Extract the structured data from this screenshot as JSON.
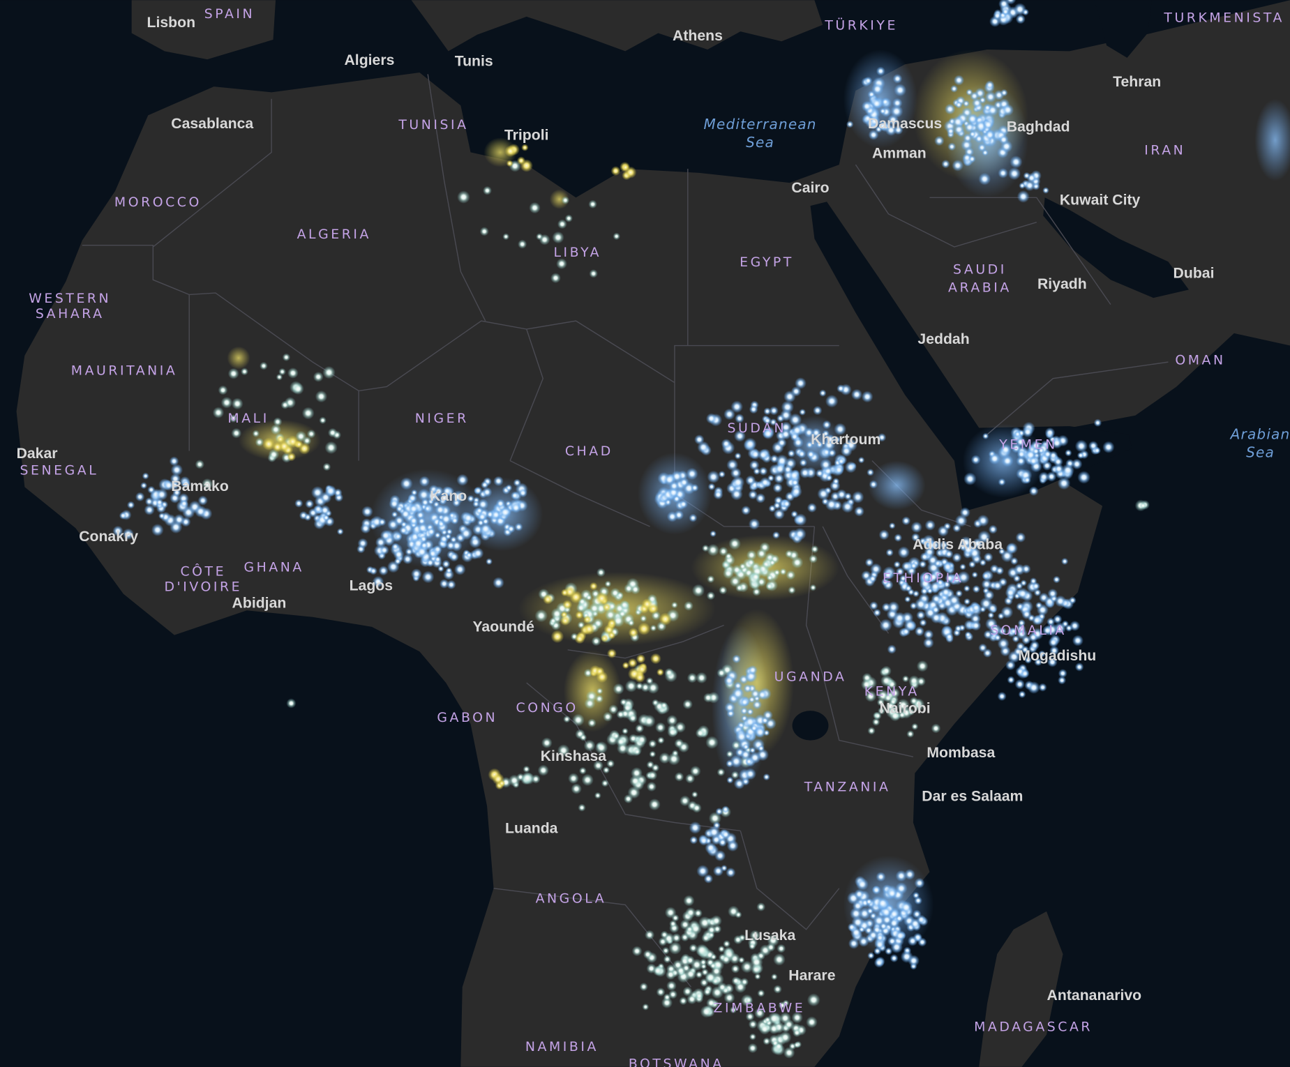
{
  "map": {
    "countries": [
      "SPAIN",
      "TÜRKIYE",
      "TURKMENISTA",
      "TUNISIA",
      "MOROCCO",
      "ALGERIA",
      "LIBYA",
      "EGYPT",
      "IRAN",
      "SAUDI",
      "ARABIA",
      "WESTERN",
      "SAHARA",
      "MAURITANIA",
      "MALI",
      "NIGER",
      "CHAD",
      "SUDAN",
      "OMAN",
      "SENEGAL",
      "GHANA",
      "CÔTE",
      "D'IVOIRE",
      "ETHIOPIA",
      "SOMALIA",
      "UGANDA",
      "KENYA",
      "GABON",
      "CONGO",
      "TANZANIA",
      "ANGOLA",
      "ZIMBABWE",
      "NAMIBIA",
      "BOTSWANA",
      "MADAGASCAR",
      "YEMEN"
    ],
    "cities": [
      "Lisbon",
      "Athens",
      "Algiers",
      "Tunis",
      "Tehran",
      "Casablanca",
      "Tripoli",
      "Baghdad",
      "Damascus",
      "Amman",
      "Cairo",
      "Kuwait City",
      "Riyadh",
      "Dubai",
      "Jeddah",
      "Dakar",
      "Bamako",
      "Kano",
      "Khartoum",
      "Conakry",
      "Addis Ababa",
      "Lagos",
      "Abidjan",
      "Yaoundé",
      "Mogadishu",
      "Nairobi",
      "Kinshasa",
      "Mombasa",
      "Dar es Salaam",
      "Luanda",
      "Lusaka",
      "Harare",
      "Antananarivo"
    ],
    "seas": [
      "Mediterranean",
      "Sea",
      "Arabian",
      "Sea"
    ]
  }
}
